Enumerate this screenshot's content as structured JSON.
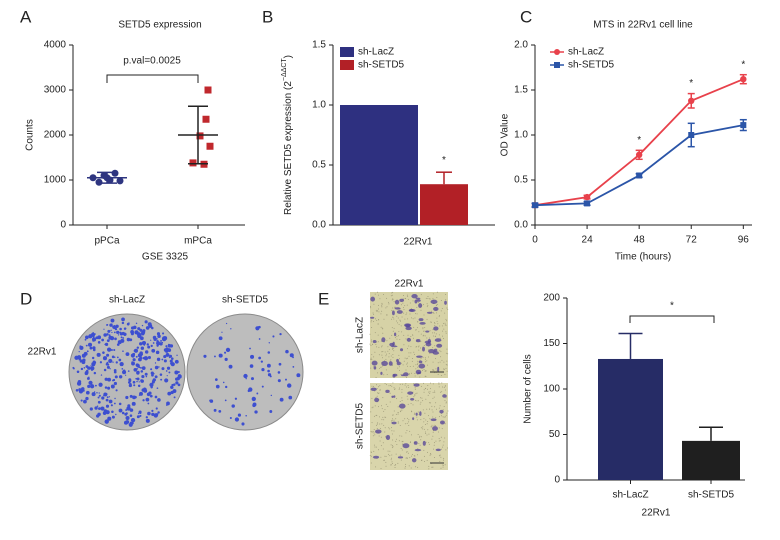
{
  "chart_data": [
    {
      "type": "dot",
      "panel": "A",
      "title": "SETD5 expression",
      "ylabel": "Counts",
      "xlabel": "GSE 3325",
      "annotation": "p.val=0.0025",
      "categories": [
        "pPCa",
        "mPCa"
      ],
      "groups": [
        {
          "marker": "circle",
          "color": "#2e3580",
          "values": [
            1050,
            950,
            1100,
            1000,
            1150,
            980,
            1050
          ],
          "mean": 1050,
          "error": 120
        },
        {
          "marker": "square",
          "color": "#c0282d",
          "values": [
            3000,
            2350,
            1980,
            1750,
            1380,
            1350
          ],
          "mean": 2000,
          "error": 640
        }
      ],
      "ylim": [
        0,
        4000
      ],
      "yticks": [
        0,
        1000,
        2000,
        3000,
        4000
      ]
    },
    {
      "type": "bar",
      "panel": "B",
      "ylabel": "Relative SETD5 expression (2",
      "ylabel_sup": "−ΔΔCT",
      "ylabel_end": ")",
      "xlabel": "22Rv1",
      "legend": "top-left",
      "annotation": "*",
      "series": [
        {
          "name": "sh-LacZ",
          "color": "#2e3080",
          "values": [
            1.0
          ]
        },
        {
          "name": "sh-SETD5",
          "color": "#b22026",
          "values": [
            0.34
          ],
          "errors": [
            0.1
          ]
        }
      ],
      "ylim": [
        0,
        1.5
      ],
      "yticks": [
        {
          "value": 0,
          "label": "0.0"
        },
        0.5,
        {
          "value": 1,
          "label": "1.0"
        },
        1.5
      ]
    },
    {
      "type": "line",
      "panel": "C",
      "title": "MTS in 22Rv1 cell line",
      "xlabel": "Time (hours)",
      "ylabel": "OD Value",
      "legend": "top-left",
      "x": [
        0,
        24,
        48,
        72,
        96
      ],
      "series": [
        {
          "name": "sh-LacZ",
          "color": "#e8414b",
          "marker": "circle",
          "values": [
            0.22,
            0.31,
            0.78,
            1.38,
            1.62
          ],
          "errors": [
            0.02,
            0.02,
            0.05,
            0.08,
            0.05
          ]
        },
        {
          "name": "sh-SETD5",
          "color": "#2b55a8",
          "marker": "square",
          "values": [
            0.22,
            0.24,
            0.55,
            1.0,
            1.11
          ],
          "errors": [
            0.02,
            0.02,
            0.02,
            0.13,
            0.06
          ]
        }
      ],
      "annotations": [
        {
          "text": "*",
          "x": 48
        },
        {
          "text": "*",
          "x": 72
        },
        {
          "text": "*",
          "x": 96
        }
      ],
      "xlim": [
        0,
        100
      ],
      "xticks": [
        0,
        24,
        48,
        72,
        96
      ],
      "ylim": [
        0,
        2
      ],
      "yticks": [
        {
          "value": 0,
          "label": "0.0"
        },
        0.5,
        {
          "value": 1,
          "label": "1.0"
        },
        1.5,
        {
          "value": 2,
          "label": "2.0"
        }
      ]
    },
    {
      "type": "bar",
      "panel": "E",
      "ylabel": "Number of cells",
      "xlabel": "22Rv1",
      "annotation": "*",
      "categories": [
        "sh-LacZ",
        "sh-SETD5"
      ],
      "values": [
        133,
        43
      ],
      "errors": [
        28,
        15
      ],
      "colors": [
        "#262c66",
        "#1f1f1f"
      ],
      "ylim": [
        0,
        200
      ],
      "yticks": [
        0,
        50,
        100,
        150,
        200
      ]
    }
  ],
  "figure_panels": {
    "D": {
      "panel": "D",
      "columns": [
        "sh-LacZ",
        "sh-SETD5"
      ],
      "row": "22Rv1"
    },
    "E": {
      "panel": "E",
      "column": "22Rv1",
      "rows": [
        "sh-LacZ",
        "sh-SETD5"
      ]
    }
  }
}
